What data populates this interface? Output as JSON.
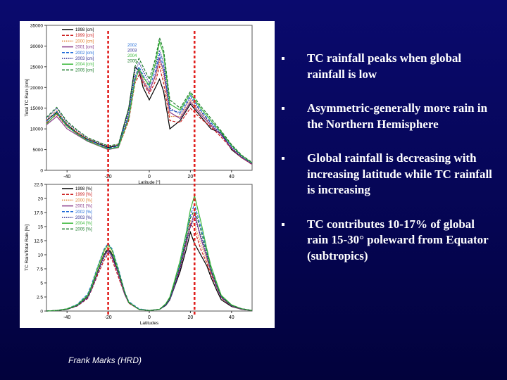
{
  "slide": {
    "bullets": [
      "TC rainfall peaks when global rainfall is low",
      "Asymmetric-generally more rain in the Northern Hemisphere",
      "Global rainfall is decreasing with increasing latitude while TC rainfall is increasing",
      "TC contributes 10-17% of global rain 15-30° poleward from Equator (subtropics)"
    ],
    "credit": "Frank Marks (HRD)"
  },
  "colors": {
    "background": "#050552",
    "marker_line": "#e0201e",
    "series": [
      "#000000",
      "#cc2020",
      "#e08030",
      "#8a3a8a",
      "#1e6ad8",
      "#2a2a90",
      "#3ab83a",
      "#1a7a2a",
      "#0a8a8a",
      "#7ad070"
    ]
  },
  "chart_data": [
    {
      "type": "line",
      "panel": "top",
      "ylabel": "Total TC Rain [cm]",
      "xlabel": "Latitude [°]",
      "x_ticks": [
        "-40",
        "-20",
        "0",
        "20",
        "40"
      ],
      "xlim": [
        -50,
        50
      ],
      "y_ticks": [
        "0",
        "5000",
        "10000",
        "15000",
        "20000",
        "25000",
        "30000",
        "35000"
      ],
      "ylim": [
        0,
        35000
      ],
      "legend": [
        "1998 [cm]",
        "1999 [cm]",
        "2000 [cm]",
        "2001 [cm]",
        "2002 [cm]",
        "2003 [cm]",
        "2004 [cm]",
        "2005 [cm]"
      ],
      "legend_right": [
        "2002",
        "2003",
        "2004",
        "2005"
      ],
      "markers_x": [
        -20,
        22
      ],
      "x": [
        -50,
        -45,
        -40,
        -35,
        -30,
        -25,
        -20,
        -15,
        -10,
        -7,
        -5,
        -3,
        0,
        3,
        5,
        7,
        10,
        15,
        20,
        25,
        30,
        35,
        40,
        45,
        50
      ],
      "series": [
        {
          "name": "1998",
          "values": [
            12000,
            14000,
            11000,
            9000,
            7500,
            6500,
            5500,
            6000,
            15000,
            25000,
            24000,
            20000,
            17000,
            20000,
            22000,
            19000,
            10000,
            12000,
            16000,
            13000,
            10000,
            9000,
            5000,
            3000,
            1500
          ]
        },
        {
          "name": "1999",
          "values": [
            11500,
            13500,
            10500,
            9000,
            7200,
            6200,
            5200,
            5500,
            12000,
            21000,
            23000,
            21000,
            18500,
            21500,
            25000,
            21000,
            12000,
            11500,
            15000,
            12500,
            10500,
            8000,
            5200,
            3000,
            1400
          ]
        },
        {
          "name": "2000",
          "values": [
            12200,
            14500,
            11200,
            9200,
            7600,
            6700,
            5700,
            6200,
            14000,
            23000,
            24500,
            22000,
            19500,
            22500,
            26000,
            23000,
            13000,
            13000,
            17000,
            14000,
            11000,
            8800,
            5600,
            3300,
            1600
          ]
        },
        {
          "name": "2001",
          "values": [
            11000,
            13000,
            10000,
            8500,
            7000,
            6000,
            5000,
            5500,
            13000,
            22000,
            24000,
            21500,
            19000,
            23000,
            27000,
            24000,
            14000,
            12500,
            16500,
            13500,
            10800,
            8500,
            5300,
            3100,
            1500
          ]
        },
        {
          "name": "2002",
          "values": [
            11800,
            14200,
            10800,
            8800,
            7300,
            6400,
            5300,
            5800,
            13500,
            22500,
            25000,
            23000,
            20000,
            24000,
            28000,
            25000,
            14500,
            14000,
            18000,
            14500,
            11500,
            9000,
            5800,
            3400,
            1700
          ]
        },
        {
          "name": "2003",
          "values": [
            12500,
            15000,
            11500,
            9500,
            7800,
            6800,
            5800,
            6000,
            14500,
            24000,
            26000,
            24000,
            21000,
            25000,
            29000,
            26000,
            15000,
            13500,
            17500,
            14200,
            11200,
            8700,
            5500,
            3200,
            1600
          ]
        },
        {
          "name": "2004",
          "values": [
            11200,
            13800,
            10600,
            8700,
            7100,
            6100,
            5100,
            5600,
            12500,
            21500,
            24500,
            22500,
            20500,
            26000,
            31000,
            28000,
            16000,
            14500,
            18500,
            15000,
            12000,
            9200,
            6000,
            3500,
            1800
          ]
        },
        {
          "name": "2005",
          "values": [
            12800,
            15200,
            11800,
            9700,
            7900,
            6900,
            5900,
            6300,
            15000,
            25000,
            27000,
            25000,
            22000,
            27000,
            32000,
            29000,
            17000,
            15000,
            19000,
            15500,
            12500,
            9500,
            6200,
            3600,
            1900
          ]
        }
      ]
    },
    {
      "type": "line",
      "panel": "bottom",
      "ylabel": "TC Rain/Total Rain [%]",
      "xlabel": "Latitudes",
      "x_ticks": [
        "-40",
        "-20",
        "0",
        "20",
        "40"
      ],
      "xlim": [
        -50,
        50
      ],
      "y_ticks": [
        "0",
        "2.5",
        "5",
        "7.5",
        "10",
        "12.5",
        "15",
        "17.5",
        "20",
        "22.5"
      ],
      "ylim": [
        0,
        22.5
      ],
      "legend": [
        "1998 [%]",
        "1999 [%]",
        "2000 [%]",
        "2001 [%]",
        "2002 [%]",
        "2003 [%]",
        "2004 [%]",
        "2005 [%]"
      ],
      "markers_x": [
        -20,
        22
      ],
      "x": [
        -50,
        -45,
        -40,
        -35,
        -30,
        -28,
        -25,
        -22,
        -20,
        -18,
        -15,
        -12,
        -10,
        -5,
        0,
        5,
        8,
        10,
        12,
        15,
        18,
        20,
        22,
        25,
        28,
        30,
        33,
        35,
        40,
        45,
        50
      ],
      "series": [
        {
          "name": "1998",
          "values": [
            0,
            0.1,
            0.3,
            1.0,
            2.5,
            4.0,
            7.0,
            10.0,
            11.0,
            10.0,
            6.5,
            3.0,
            1.5,
            0.3,
            0.1,
            0.3,
            1.0,
            2.0,
            4.0,
            7.0,
            11.0,
            14.0,
            12.0,
            10.0,
            8.0,
            6.0,
            3.5,
            2.0,
            0.8,
            0.3,
            0.1
          ]
        },
        {
          "name": "1999",
          "values": [
            0,
            0.1,
            0.3,
            0.9,
            2.2,
            3.8,
            6.5,
            9.0,
            10.2,
            9.0,
            6.0,
            3.0,
            1.4,
            0.3,
            0.1,
            0.3,
            1.1,
            2.2,
            4.2,
            7.5,
            12.0,
            15.5,
            14.5,
            11.0,
            8.5,
            6.5,
            4.0,
            2.3,
            0.9,
            0.3,
            0.1
          ]
        },
        {
          "name": "2000",
          "values": [
            0,
            0.1,
            0.4,
            1.1,
            2.7,
            4.3,
            7.5,
            10.5,
            11.5,
            10.5,
            7.0,
            3.2,
            1.6,
            0.3,
            0.1,
            0.3,
            1.2,
            2.3,
            4.5,
            8.0,
            13.0,
            16.0,
            15.5,
            12.0,
            9.0,
            6.8,
            4.2,
            2.5,
            1.0,
            0.4,
            0.1
          ]
        },
        {
          "name": "2001",
          "values": [
            0,
            0.1,
            0.3,
            1.0,
            2.4,
            4.0,
            7.0,
            9.8,
            10.8,
            9.5,
            6.5,
            3.0,
            1.5,
            0.3,
            0.1,
            0.3,
            1.1,
            2.1,
            4.2,
            7.8,
            12.5,
            15.0,
            17.5,
            13.0,
            9.5,
            7.0,
            4.0,
            2.4,
            0.9,
            0.3,
            0.1
          ]
        },
        {
          "name": "2002",
          "values": [
            0,
            0.1,
            0.4,
            1.2,
            3.0,
            4.8,
            8.0,
            11.0,
            12.0,
            11.0,
            7.5,
            3.5,
            1.7,
            0.4,
            0.1,
            0.3,
            1.2,
            2.4,
            4.8,
            8.5,
            13.5,
            17.0,
            19.0,
            15.0,
            10.5,
            7.5,
            4.5,
            2.6,
            1.0,
            0.4,
            0.1
          ]
        },
        {
          "name": "2003",
          "values": [
            0,
            0.1,
            0.3,
            0.9,
            2.3,
            3.9,
            6.8,
            9.5,
            10.5,
            9.8,
            6.8,
            3.2,
            1.5,
            0.3,
            0.1,
            0.3,
            1.0,
            2.0,
            4.0,
            7.5,
            12.0,
            15.0,
            16.5,
            13.5,
            10.0,
            7.2,
            4.3,
            2.5,
            1.0,
            0.4,
            0.1
          ]
        },
        {
          "name": "2004",
          "values": [
            0,
            0.1,
            0.4,
            1.1,
            2.8,
            4.5,
            7.8,
            10.8,
            11.8,
            10.8,
            7.2,
            3.4,
            1.6,
            0.3,
            0.1,
            0.3,
            1.3,
            2.5,
            5.0,
            9.0,
            14.0,
            18.0,
            20.5,
            16.0,
            11.0,
            8.0,
            4.8,
            2.8,
            1.1,
            0.4,
            0.1
          ]
        },
        {
          "name": "2005",
          "values": [
            0,
            0.1,
            0.3,
            1.0,
            2.6,
            4.2,
            7.2,
            10.2,
            11.2,
            10.2,
            7.0,
            3.3,
            1.5,
            0.3,
            0.1,
            0.3,
            1.2,
            2.3,
            4.6,
            8.2,
            13.0,
            16.5,
            18.0,
            14.5,
            10.2,
            7.4,
            4.4,
            2.6,
            1.0,
            0.4,
            0.1
          ]
        }
      ]
    }
  ]
}
